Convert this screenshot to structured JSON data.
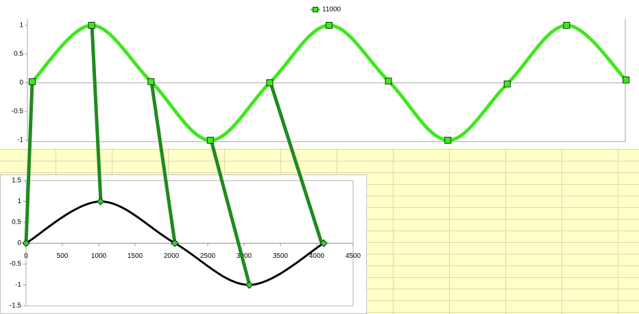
{
  "chart_data": [
    {
      "type": "line",
      "categories": [
        null,
        null,
        null,
        null,
        null,
        null,
        null,
        null,
        null,
        null,
        null
      ],
      "series": [
        {
          "name": "11000",
          "color": "#3ee81e",
          "values": [
            0.02,
            1,
            0.02,
            -1,
            0,
            1,
            0.03,
            -1,
            -0.02,
            1,
            0.05
          ]
        }
      ],
      "ylim": [
        -1,
        1
      ],
      "yticks": [
        -1,
        -0.5,
        0,
        0.5,
        1
      ],
      "legend": "top"
    },
    {
      "type": "scatter",
      "x": [
        0,
        1024,
        2048,
        3072,
        4096
      ],
      "series": [
        {
          "color": "#000000",
          "values": [
            0,
            1,
            0,
            -1,
            0
          ]
        }
      ],
      "xlim": [
        0,
        4500
      ],
      "xticks": [
        0,
        500,
        1000,
        1500,
        2000,
        2500,
        3000,
        3500,
        4000,
        4500
      ],
      "ylim": [
        -1.5,
        1.5
      ],
      "yticks": [
        -1.5,
        -1,
        -0.5,
        0,
        0.5,
        1,
        1.5
      ]
    }
  ]
}
